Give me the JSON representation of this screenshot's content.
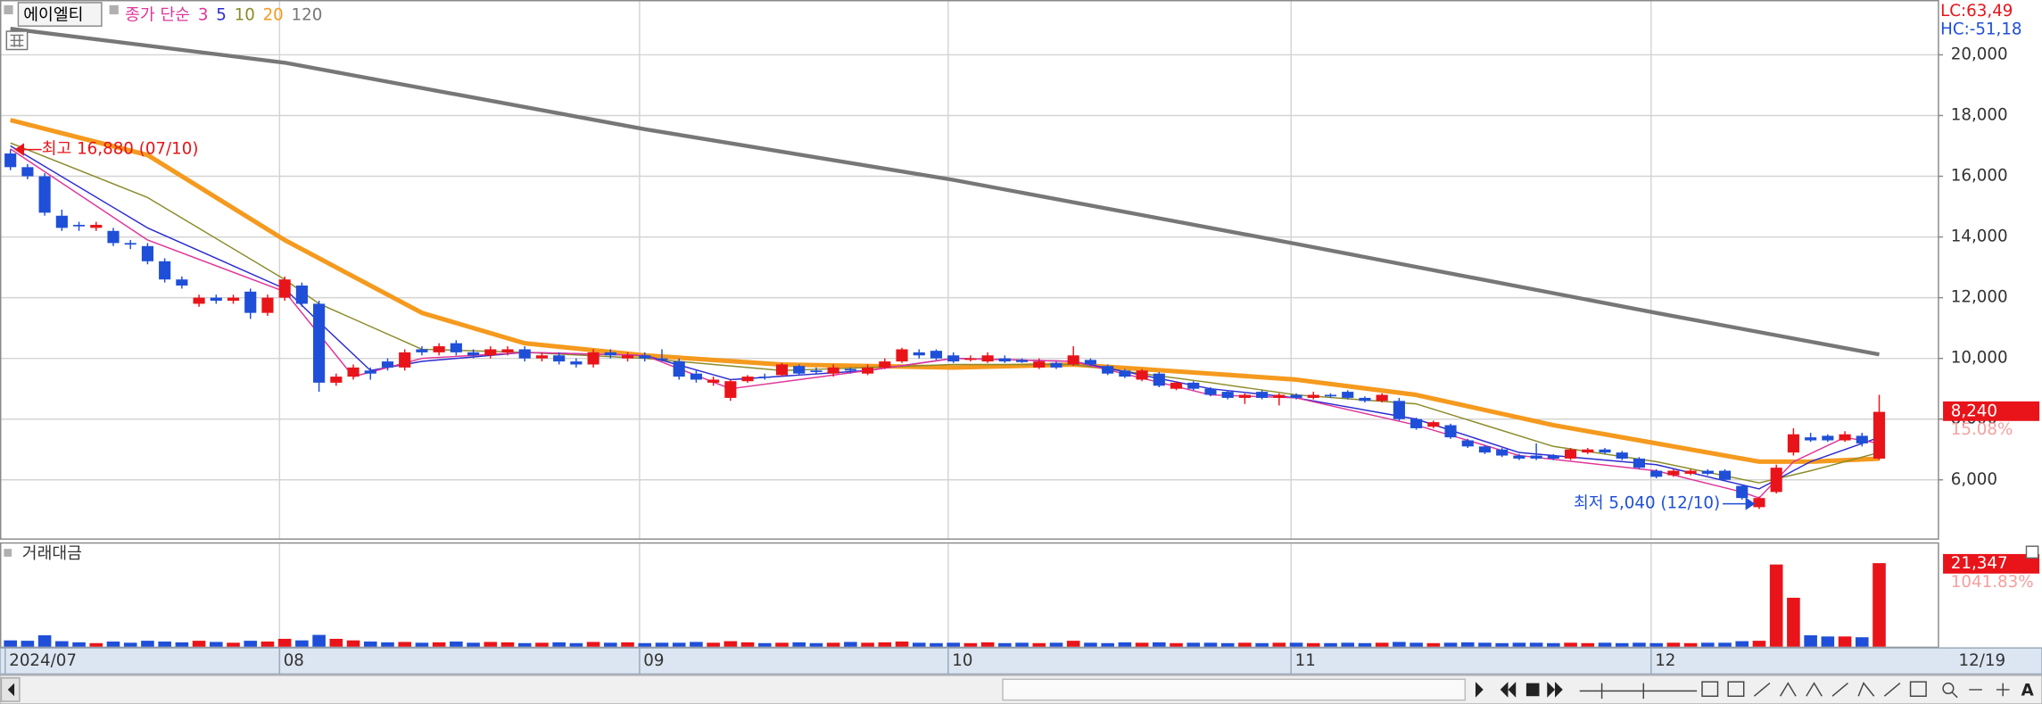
{
  "stock_name": "에이엘티",
  "chart_data": {
    "type": "candlestick",
    "legend_prefix": "종가 단순",
    "lc_label": "LC:63,49",
    "hc_label": "HC:-51,18",
    "high_label": "최고 16,880 (07/10)",
    "low_label": "최저 5,040 (12/10)",
    "change_label": "15.08%",
    "x_end_label": "12/19",
    "up_color": "#e8141a",
    "down_color": "#1f4fd8",
    "categories": [
      "2024/07",
      null,
      null,
      null,
      null,
      null,
      null,
      null,
      null,
      null,
      null,
      null,
      null,
      null,
      null,
      null,
      "08",
      null,
      null,
      null,
      null,
      null,
      null,
      null,
      null,
      null,
      null,
      null,
      null,
      null,
      null,
      null,
      null,
      null,
      null,
      null,
      null,
      "09",
      null,
      null,
      null,
      null,
      null,
      null,
      null,
      null,
      null,
      null,
      null,
      null,
      null,
      null,
      null,
      null,
      null,
      "10",
      null,
      null,
      null,
      null,
      null,
      null,
      null,
      null,
      null,
      null,
      null,
      null,
      null,
      null,
      null,
      null,
      null,
      null,
      null,
      "11",
      null,
      null,
      null,
      null,
      null,
      null,
      null,
      null,
      null,
      null,
      null,
      null,
      null,
      null,
      null,
      null,
      null,
      null,
      null,
      null,
      "12",
      null,
      null,
      null,
      null,
      null,
      null,
      null,
      null,
      null,
      null,
      null,
      null,
      null
    ],
    "ylim": [
      4070,
      21720
    ],
    "yticks": [
      {
        "value": 6000,
        "label": "6,000"
      },
      {
        "value": 8000,
        "label": "8,000"
      },
      {
        "value": 10000,
        "label": "10,000"
      },
      {
        "value": 12000,
        "label": "12,000"
      },
      {
        "value": 14000,
        "label": "14,000"
      },
      {
        "value": 16000,
        "label": "16,000"
      },
      {
        "value": 18000,
        "label": "18,000"
      },
      {
        "value": 20000,
        "label": "20,000"
      }
    ],
    "grid": true,
    "candles": {
      "open": [
        16750,
        16300,
        16000,
        14700,
        14400,
        14300,
        14200,
        13800,
        13700,
        13200,
        12600,
        11800,
        12000,
        11900,
        12200,
        11500,
        12000,
        12400,
        11800,
        9200,
        9400,
        9600,
        9900,
        9700,
        10300,
        10200,
        10500,
        10200,
        10100,
        10200,
        10300,
        10000,
        10100,
        9900,
        9800,
        10200,
        10000,
        10100,
        10000,
        9900,
        9500,
        9200,
        8700,
        9250,
        9400,
        9450,
        9750,
        9600,
        9500,
        9650,
        9500,
        9700,
        9900,
        10200,
        10250,
        10100,
        9950,
        9900,
        10000,
        9950,
        9700,
        9850,
        9800,
        9950,
        9750,
        9600,
        9300,
        9500,
        9000,
        9200,
        9000,
        8900,
        8700,
        8900,
        8700,
        8800,
        8700,
        8800,
        8900,
        8700,
        8600,
        8600,
        8000,
        7750,
        7800,
        7300,
        7100,
        7000,
        6800,
        6800,
        6800,
        6700,
        6900,
        7000,
        6900,
        6700,
        6300,
        6150,
        6200,
        6300,
        6300,
        5800,
        5100,
        5600,
        6900,
        7400,
        7450,
        7300,
        7450,
        6700
      ],
      "high": [
        16880,
        16400,
        16100,
        14900,
        14500,
        14500,
        14300,
        13900,
        13800,
        13300,
        12700,
        12100,
        12100,
        12100,
        12300,
        12100,
        12700,
        12500,
        11900,
        9500,
        9800,
        9700,
        10000,
        10300,
        10400,
        10500,
        10600,
        10300,
        10400,
        10400,
        10400,
        10200,
        10200,
        10000,
        10300,
        10300,
        10200,
        10200,
        10300,
        10000,
        9600,
        9400,
        9300,
        9450,
        9500,
        9850,
        9800,
        9700,
        9800,
        9700,
        9800,
        10000,
        10350,
        10300,
        10300,
        10200,
        10100,
        10200,
        10100,
        10000,
        10000,
        9900,
        10400,
        10000,
        9800,
        9650,
        9650,
        9550,
        9250,
        9250,
        9050,
        8950,
        8850,
        8950,
        8850,
        8850,
        8900,
        8850,
        8950,
        8750,
        8850,
        8700,
        8050,
        7950,
        7850,
        7350,
        7150,
        7050,
        6850,
        7200,
        6850,
        7050,
        7050,
        7050,
        6950,
        6750,
        6350,
        6350,
        6350,
        6350,
        6350,
        5850,
        5450,
        6500,
        7700,
        7550,
        7500,
        7600,
        7550,
        8800
      ],
      "low": [
        16200,
        15900,
        14700,
        14200,
        14200,
        14200,
        13700,
        13600,
        13100,
        12500,
        12300,
        11700,
        11800,
        11800,
        11300,
        11400,
        11900,
        11700,
        8900,
        9100,
        9300,
        9300,
        9600,
        9600,
        10100,
        10100,
        10100,
        10000,
        10000,
        10100,
        9900,
        9900,
        9800,
        9700,
        9700,
        10000,
        9900,
        9900,
        9900,
        9300,
        9200,
        9100,
        8600,
        9200,
        9300,
        9400,
        9450,
        9500,
        9400,
        9500,
        9450,
        9650,
        9850,
        10000,
        9950,
        9850,
        9900,
        9850,
        9850,
        9850,
        9650,
        9650,
        9750,
        9750,
        9450,
        9350,
        9250,
        9050,
        8950,
        8950,
        8750,
        8650,
        8500,
        8650,
        8450,
        8650,
        8650,
        8700,
        8650,
        8550,
        8550,
        7950,
        7650,
        7700,
        7350,
        7050,
        6850,
        6750,
        6650,
        6650,
        6650,
        6650,
        6850,
        6850,
        6650,
        6350,
        6050,
        6100,
        6150,
        6150,
        5950,
        5350,
        5040,
        5550,
        6800,
        7250,
        7250,
        7250,
        7100,
        6650
      ],
      "close": [
        16300,
        16000,
        14800,
        14300,
        14350,
        14400,
        13800,
        13750,
        13200,
        12600,
        12400,
        12000,
        11900,
        12000,
        11500,
        12000,
        12600,
        11800,
        9200,
        9400,
        9700,
        9500,
        9700,
        10200,
        10200,
        10400,
        10200,
        10100,
        10300,
        10300,
        10000,
        10100,
        9900,
        9800,
        10200,
        10100,
        10100,
        10000,
        9950,
        9400,
        9300,
        9300,
        9250,
        9400,
        9380,
        9800,
        9500,
        9550,
        9700,
        9600,
        9700,
        9900,
        10300,
        10100,
        10000,
        9900,
        10000,
        10100,
        9900,
        9880,
        9900,
        9700,
        10100,
        9800,
        9500,
        9400,
        9600,
        9100,
        9200,
        9000,
        8800,
        8700,
        8800,
        8700,
        8800,
        8700,
        8800,
        8750,
        8700,
        8600,
        8800,
        8000,
        7700,
        7900,
        7400,
        7100,
        6900,
        6800,
        6700,
        6700,
        6700,
        7000,
        7000,
        6900,
        6700,
        6400,
        6100,
        6300,
        6300,
        6200,
        6000,
        5400,
        5400,
        6400,
        7500,
        7300,
        7300,
        7500,
        7200,
        8240
      ],
      "value_labels": {
        "109": "8,240"
      }
    },
    "series": [
      {
        "name": "3",
        "color": "#e0359a",
        "width": 1,
        "x": [
          0,
          8,
          16,
          18,
          20,
          24,
          30,
          37,
          42,
          50,
          55,
          62,
          70,
          75,
          82,
          88,
          96,
          101,
          102,
          104,
          107,
          109
        ],
        "values": [
          16900,
          13900,
          12200,
          10800,
          9400,
          10000,
          10200,
          10100,
          9000,
          9600,
          10000,
          9900,
          8800,
          8700,
          7800,
          6800,
          6300,
          5600,
          5400,
          6600,
          7400,
          7200
        ]
      },
      {
        "name": "5",
        "color": "#2b2bd0",
        "width": 1,
        "x": [
          0,
          8,
          16,
          18,
          21,
          24,
          30,
          37,
          42,
          50,
          55,
          62,
          70,
          75,
          82,
          88,
          96,
          102,
          105,
          109
        ],
        "values": [
          17000,
          14300,
          12300,
          11200,
          9600,
          9900,
          10200,
          10100,
          9300,
          9600,
          10000,
          9900,
          9000,
          8700,
          8000,
          6900,
          6500,
          5700,
          6600,
          7400
        ]
      },
      {
        "name": "10",
        "color": "#8b8b2a",
        "width": 1,
        "x": [
          0,
          8,
          16,
          18,
          24,
          30,
          37,
          45,
          55,
          62,
          70,
          75,
          82,
          90,
          96,
          102,
          105,
          109
        ],
        "values": [
          17100,
          15300,
          12600,
          11800,
          10300,
          10200,
          10000,
          9600,
          9800,
          9800,
          9200,
          8800,
          8500,
          7100,
          6600,
          5900,
          6300,
          6900
        ]
      },
      {
        "name": "20",
        "color": "#f59a1e",
        "width": 3.5,
        "x": [
          0,
          8,
          16,
          24,
          30,
          37,
          45,
          55,
          62,
          70,
          75,
          82,
          90,
          96,
          102,
          105,
          109
        ],
        "values": [
          17850,
          16700,
          13900,
          11500,
          10500,
          10100,
          9800,
          9700,
          9800,
          9500,
          9300,
          8800,
          7800,
          7200,
          6600,
          6600,
          6700
        ]
      },
      {
        "name": "120",
        "color": "#777777",
        "width": 3,
        "x": [
          0,
          16,
          37,
          55,
          75,
          96,
          109
        ],
        "values": [
          20860,
          19740,
          17550,
          15880,
          13770,
          11500,
          10130
        ]
      }
    ],
    "volume": {
      "title": "거래대금",
      "change_label": "1041.83%",
      "ylim": [
        0,
        26000
      ],
      "values": [
        1600,
        1500,
        2900,
        1400,
        1100,
        900,
        1300,
        1000,
        1500,
        1300,
        1100,
        1500,
        1200,
        1000,
        1500,
        1300,
        2000,
        1600,
        3000,
        2000,
        1600,
        1300,
        1100,
        1200,
        1000,
        1100,
        1300,
        1000,
        1200,
        1100,
        900,
        1000,
        1100,
        900,
        1200,
        1000,
        1100,
        900,
        1000,
        1000,
        1200,
        1000,
        1400,
        1100,
        900,
        1000,
        1100,
        900,
        1000,
        1200,
        1000,
        1100,
        1300,
        1000,
        900,
        1000,
        900,
        1100,
        900,
        1000,
        900,
        1000,
        1500,
        1000,
        900,
        1100,
        1000,
        1100,
        900,
        1000,
        1000,
        900,
        1000,
        900,
        1000,
        1000,
        900,
        900,
        1000,
        900,
        1000,
        1200,
        1000,
        900,
        1000,
        1100,
        1000,
        900,
        1000,
        1000,
        900,
        1000,
        900,
        1000,
        900,
        1000,
        900,
        1000,
        900,
        1000,
        1000,
        1400,
        1500,
        21000,
        12500,
        2900,
        2600,
        2600,
        2400,
        21347
      ],
      "value_labels": {
        "109": "21,347"
      }
    }
  }
}
